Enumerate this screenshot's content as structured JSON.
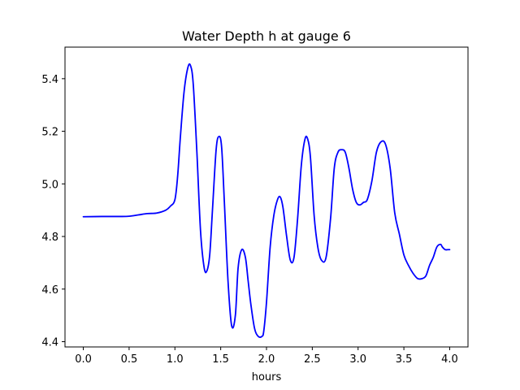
{
  "chart_data": {
    "type": "line",
    "title": "Water Depth h at gauge 6",
    "xlabel": "hours",
    "ylabel": "",
    "xlim": [
      -0.2,
      4.2
    ],
    "ylim": [
      4.38,
      5.52
    ],
    "xticks": [
      0.0,
      0.5,
      1.0,
      1.5,
      2.0,
      2.5,
      3.0,
      3.5,
      4.0
    ],
    "xtick_labels": [
      "0.0",
      "0.5",
      "1.0",
      "1.5",
      "2.0",
      "2.5",
      "3.0",
      "3.5",
      "4.0"
    ],
    "yticks": [
      4.4,
      4.6,
      4.8,
      5.0,
      5.2,
      5.4
    ],
    "ytick_labels": [
      "4.4",
      "4.6",
      "4.8",
      "5.0",
      "5.2",
      "5.4"
    ],
    "grid": false,
    "series": [
      {
        "color": "#0000ff",
        "x": [
          0.0,
          0.2,
          0.4,
          0.5,
          0.6,
          0.7,
          0.8,
          0.9,
          0.95,
          1.0,
          1.03,
          1.06,
          1.1,
          1.14,
          1.17,
          1.2,
          1.24,
          1.28,
          1.32,
          1.35,
          1.38,
          1.41,
          1.45,
          1.48,
          1.51,
          1.54,
          1.58,
          1.62,
          1.66,
          1.69,
          1.73,
          1.77,
          1.8,
          1.83,
          1.87,
          1.91,
          1.95,
          1.97,
          2.0,
          2.04,
          2.08,
          2.12,
          2.15,
          2.18,
          2.22,
          2.26,
          2.3,
          2.34,
          2.38,
          2.42,
          2.45,
          2.48,
          2.52,
          2.56,
          2.6,
          2.65,
          2.7,
          2.74,
          2.78,
          2.82,
          2.86,
          2.9,
          2.94,
          2.98,
          3.02,
          3.06,
          3.1,
          3.15,
          3.2,
          3.25,
          3.3,
          3.35,
          3.4,
          3.45,
          3.5,
          3.55,
          3.6,
          3.65,
          3.7,
          3.74,
          3.78,
          3.82,
          3.86,
          3.9,
          3.92,
          3.95,
          3.98,
          4.0
        ],
        "y": [
          4.875,
          4.876,
          4.876,
          4.877,
          4.882,
          4.887,
          4.889,
          4.9,
          4.915,
          4.94,
          5.03,
          5.18,
          5.35,
          5.44,
          5.45,
          5.38,
          5.12,
          4.82,
          4.68,
          4.67,
          4.73,
          4.9,
          5.13,
          5.18,
          5.14,
          4.93,
          4.63,
          4.46,
          4.5,
          4.68,
          4.75,
          4.72,
          4.63,
          4.54,
          4.45,
          4.42,
          4.42,
          4.44,
          4.55,
          4.76,
          4.88,
          4.94,
          4.95,
          4.91,
          4.8,
          4.71,
          4.72,
          4.87,
          5.07,
          5.17,
          5.17,
          5.1,
          4.88,
          4.76,
          4.71,
          4.72,
          4.87,
          5.06,
          5.12,
          5.13,
          5.12,
          5.06,
          4.98,
          4.93,
          4.92,
          4.93,
          4.94,
          5.01,
          5.12,
          5.16,
          5.15,
          5.06,
          4.89,
          4.81,
          4.73,
          4.69,
          4.66,
          4.64,
          4.64,
          4.65,
          4.69,
          4.72,
          4.76,
          4.77,
          4.76,
          4.75,
          4.75,
          4.75
        ]
      }
    ]
  }
}
